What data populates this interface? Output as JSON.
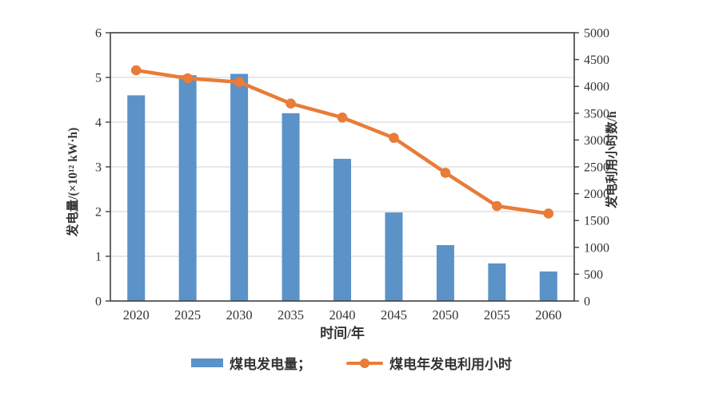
{
  "chart_data": {
    "type": "bar+line",
    "categories": [
      "2020",
      "2025",
      "2030",
      "2035",
      "2040",
      "2045",
      "2050",
      "2055",
      "2060"
    ],
    "series": [
      {
        "name": "煤电发电量",
        "type": "bar",
        "axis": "left",
        "color": "#5b92c8",
        "values": [
          4.6,
          5.05,
          5.08,
          4.2,
          3.18,
          1.98,
          1.25,
          0.84,
          0.66
        ]
      },
      {
        "name": "煤电年发电利用小时",
        "type": "line",
        "axis": "right",
        "color": "#e87c38",
        "values": [
          4300,
          4150,
          4080,
          3680,
          3420,
          3040,
          2390,
          1770,
          1630
        ]
      }
    ],
    "left_axis": {
      "title": "发电量/(×10¹² kW·h)",
      "min": 0,
      "max": 6,
      "step": 1
    },
    "right_axis": {
      "title": "发电利用小时数/h",
      "min": 0,
      "max": 5000,
      "step": 500
    },
    "x_axis": {
      "title": "时间/年"
    },
    "grid": true,
    "legend_position": "bottom"
  },
  "legend": {
    "items": [
      {
        "label": "煤电发电量；",
        "marker": "bar-swatch"
      },
      {
        "label": "煤电年发电利用小时",
        "marker": "line-dot-swatch"
      }
    ]
  },
  "colors": {
    "bar": "#5b92c8",
    "line": "#e87c38",
    "axis_border": "#404040",
    "gridline": "#d9d9d9",
    "text": "#333333",
    "background": "#ffffff"
  }
}
